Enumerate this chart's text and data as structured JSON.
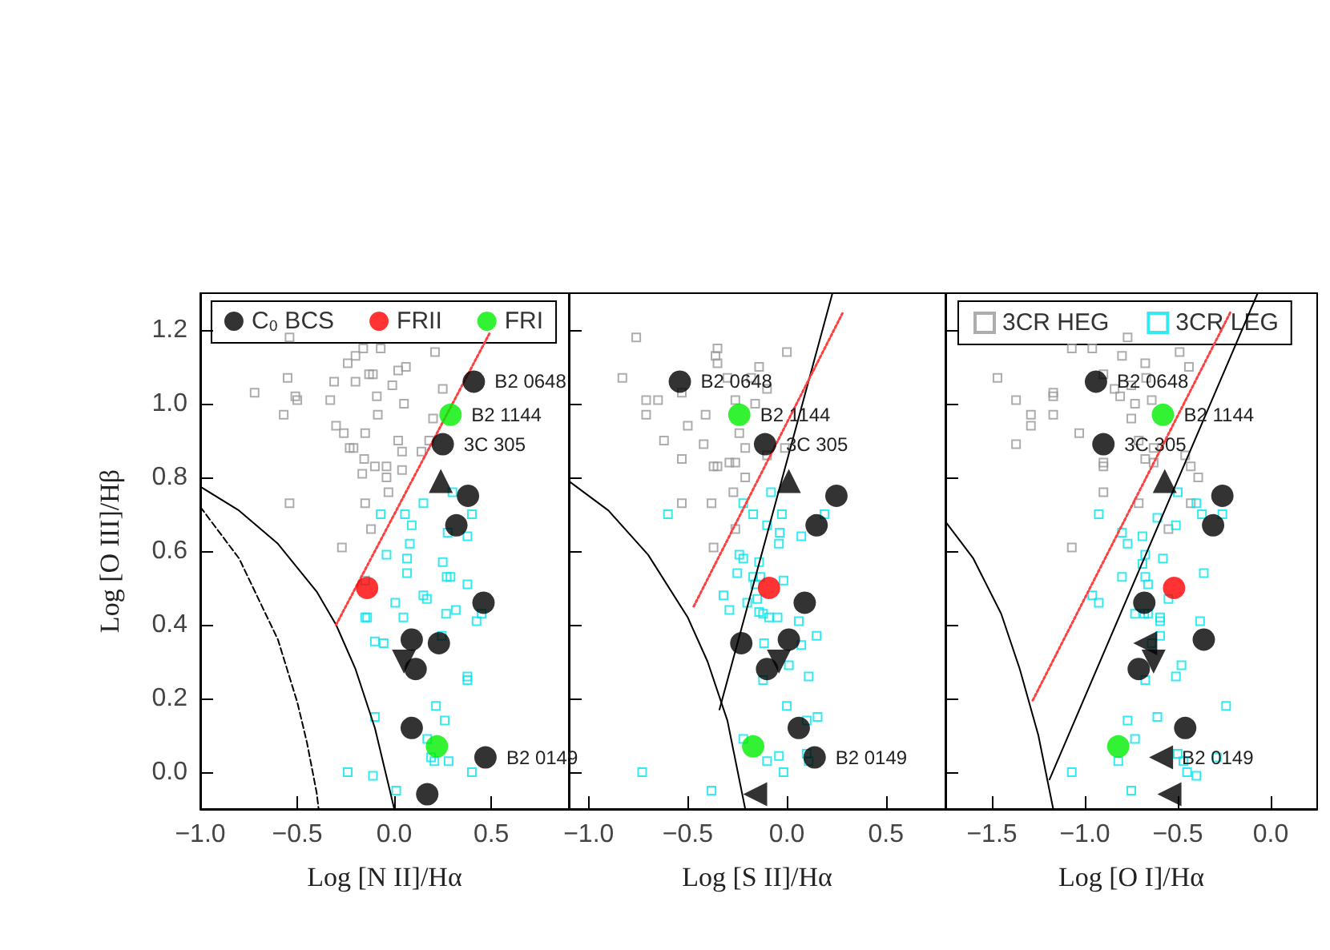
{
  "chart_data": [
    {
      "type": "scatter",
      "xlabel": "Log [N II]/Hα",
      "ylabel": "Log [O III]/Hβ",
      "xlim": [
        -1.0,
        0.9
      ],
      "ylim": [
        -0.1,
        1.3
      ],
      "xticks": [
        {
          "value": -1.0,
          "label": "−1.0"
        },
        {
          "value": -0.5,
          "label": "−0.5"
        },
        {
          "value": 0,
          "label": "0.0"
        },
        {
          "value": 0.5,
          "label": "0.5"
        }
      ],
      "yticks": [
        {
          "value": 0,
          "label": "0.0"
        },
        {
          "value": 0.2,
          "label": "0.2"
        },
        {
          "value": 0.4,
          "label": "0.4"
        },
        {
          "value": 0.6,
          "label": "0.6"
        },
        {
          "value": 0.8,
          "label": "0.8"
        },
        {
          "value": 1.0,
          "label": "1.0"
        },
        {
          "value": 1.2,
          "label": "1.2"
        }
      ],
      "legend": "top",
      "series": [
        {
          "color": "#999999",
          "marker": "square",
          "x": [
            -0.72,
            -0.54,
            -0.55,
            -0.57,
            -0.51,
            -0.5,
            -0.54,
            -0.26,
            -0.31,
            -0.33,
            -0.3,
            -0.24,
            -0.2,
            -0.16,
            -0.07,
            -0.2,
            -0.13,
            -0.11,
            -0.09,
            -0.085,
            -0.23,
            -0.21,
            -0.15,
            -0.155,
            -0.1,
            -0.04,
            -0.04,
            -0.165,
            -0.15,
            -0.03,
            -0.12,
            -0.27,
            -0.01,
            0.02,
            0.06,
            0.05,
            0.02,
            0.04,
            0.04,
            0.14,
            0.18,
            0.2,
            0.21,
            0.25
          ],
          "values": [
            1.03,
            1.18,
            1.07,
            0.97,
            1.02,
            1.01,
            0.73,
            0.92,
            1.06,
            1.01,
            0.94,
            1.11,
            1.13,
            1.15,
            1.15,
            1.06,
            1.08,
            1.08,
            1.02,
            0.97,
            0.88,
            0.88,
            0.92,
            0.85,
            0.83,
            0.83,
            0.8,
            0.81,
            0.73,
            0.76,
            0.66,
            0.61,
            1.05,
            1.09,
            1.1,
            1.0,
            0.9,
            0.87,
            0.82,
            0.87,
            0.9,
            0.96,
            1.14,
            1.04
          ]
        },
        {
          "color": "#00e5ee",
          "marker": "square",
          "x": [
            -0.07,
            0.055,
            0.09,
            0.15,
            0.3,
            0.4,
            0.275,
            0.377,
            -0.04,
            0.066,
            0.08,
            0.066,
            0.25,
            0.27,
            0.29,
            0.377,
            -0.15,
            -0.14,
            -0.15,
            -0.1,
            -0.055,
            0.005,
            0.047,
            0.15,
            0.168,
            0.267,
            0.317,
            0.424,
            0.45,
            0.245,
            0.377,
            0.377,
            0.215,
            0.26,
            -0.1,
            0.17,
            0.19,
            0.207,
            0.28,
            0.4,
            -0.24,
            -0.11,
            0.01
          ],
          "values": [
            0.7,
            0.7,
            0.67,
            0.73,
            0.76,
            0.7,
            0.65,
            0.64,
            0.59,
            0.58,
            0.62,
            0.54,
            0.57,
            0.53,
            0.53,
            0.51,
            0.52,
            0.42,
            0.42,
            0.355,
            0.35,
            0.46,
            0.42,
            0.48,
            0.47,
            0.43,
            0.44,
            0.41,
            0.43,
            0.37,
            0.26,
            0.25,
            0.18,
            0.14,
            0.15,
            0.09,
            0.04,
            0.03,
            0.03,
            0.0,
            0.0,
            -0.01,
            -0.05
          ]
        },
        {
          "type": "line",
          "color": "#000000",
          "marker": "none",
          "line_style": "solid",
          "x": [
            -1.0,
            -0.8,
            -0.6,
            -0.4,
            -0.3,
            -0.2,
            -0.1,
            0.0
          ],
          "values": [
            0.775,
            0.71,
            0.62,
            0.49,
            0.4,
            0.28,
            0.12,
            -0.1
          ]
        },
        {
          "type": "line",
          "color": "#000000",
          "marker": "none",
          "line_style": "dashed",
          "x": [
            -1.0,
            -0.8,
            -0.6,
            -0.5,
            -0.45,
            -0.4,
            -0.39
          ],
          "values": [
            0.72,
            0.58,
            0.36,
            0.19,
            0.08,
            -0.056,
            -0.1
          ]
        },
        {
          "type": "line",
          "color": "#ff4040",
          "marker": "none",
          "line_style": "dotted",
          "x": [
            -0.3,
            0.49
          ],
          "values": [
            0.4,
            1.19
          ]
        },
        {
          "name": "C$_{0}$ BCS",
          "color": "#000000",
          "marker": "circle",
          "x": [
            0.41,
            0.25,
            0.38,
            0.32,
            0.46,
            0.09,
            0.23,
            0.11,
            0.09,
            0.47,
            0.17
          ],
          "values": [
            1.06,
            0.89,
            0.75,
            0.67,
            0.46,
            0.36,
            0.35,
            0.28,
            0.12,
            0.04,
            -0.06
          ]
        },
        {
          "color": "#000000",
          "marker": "triangle",
          "x": [
            0.24
          ],
          "values": [
            0.79
          ]
        },
        {
          "color": "#000000",
          "marker": "triangle-down",
          "x": [
            0.05
          ],
          "values": [
            0.3
          ]
        },
        {
          "name": "FRII",
          "color": "#ff0000",
          "marker": "circle",
          "x": [
            -0.14
          ],
          "values": [
            0.5
          ]
        },
        {
          "name": "FRI",
          "color": "#00ee00",
          "marker": "circle",
          "x": [
            0.29,
            0.22
          ],
          "values": [
            0.97,
            0.07
          ]
        }
      ],
      "annotations": [
        {
          "text": "B2 0648",
          "x": 0.41,
          "y": 1.06
        },
        {
          "text": "B2 1144",
          "x": 0.29,
          "y": 0.97
        },
        {
          "text": "3C 305",
          "x": 0.25,
          "y": 0.89
        },
        {
          "text": "B2 0149",
          "x": 0.47,
          "y": 0.04
        }
      ]
    },
    {
      "type": "scatter",
      "xlabel": "Log [S II]/Hα",
      "xlim": [
        -1.1,
        0.8
      ],
      "ylim": [
        -0.1,
        1.3
      ],
      "tick_labels": "x",
      "xticks": [
        {
          "value": -1.0,
          "label": "−1.0"
        },
        {
          "value": -0.5,
          "label": "−0.5"
        },
        {
          "value": 0,
          "label": "0.0"
        },
        {
          "value": 0.5,
          "label": "0.5"
        }
      ],
      "yticks": [
        {
          "value": 0,
          "label": null
        },
        {
          "value": 0.2,
          "label": null
        },
        {
          "value": 0.4,
          "label": null
        },
        {
          "value": 0.6,
          "label": null
        },
        {
          "value": 0.8,
          "label": null
        },
        {
          "value": 1.0,
          "label": null
        },
        {
          "value": 1.2,
          "label": null
        }
      ],
      "series": [
        {
          "color": "#999999",
          "marker": "square",
          "x": [
            -0.76,
            -0.83,
            -0.71,
            -0.71,
            -0.65,
            -0.62,
            -0.53,
            -0.53,
            -0.53,
            -0.5,
            -0.41,
            -0.42,
            -0.38,
            -0.36,
            -0.35,
            -0.35,
            -0.37,
            -0.35,
            -0.37,
            -0.3,
            -0.29,
            -0.26,
            -0.26,
            -0.24,
            -0.21,
            -0.21,
            -0.27,
            -0.26,
            -0.18,
            -0.16,
            -0.14,
            -0.1,
            -0.1,
            0.0,
            -0.01
          ],
          "values": [
            1.18,
            1.07,
            1.01,
            0.97,
            1.01,
            0.9,
            1.03,
            0.85,
            0.73,
            0.94,
            0.97,
            0.89,
            0.73,
            1.13,
            1.15,
            1.11,
            0.83,
            0.83,
            0.61,
            1.07,
            0.84,
            0.84,
            1.01,
            0.92,
            0.8,
            0.88,
            0.76,
            0.66,
            1.07,
            1.0,
            1.1,
            1.04,
            0.86,
            1.14,
            0.88
          ]
        },
        {
          "color": "#00e5ee",
          "marker": "square",
          "x": [
            -0.6,
            -0.22,
            -0.17,
            -0.08,
            -0.025,
            -0.1,
            -0.036,
            -0.04,
            0.073,
            0.19,
            -0.24,
            -0.22,
            -0.25,
            -0.14,
            -0.17,
            -0.134,
            -0.16,
            -0.017,
            -0.32,
            -0.29,
            -0.2,
            -0.15,
            -0.14,
            -0.12,
            -0.09,
            -0.047,
            0.06,
            0.15,
            -0.115,
            0.073,
            0.01,
            0.11,
            -0.12,
            0.0,
            0.155,
            0.1,
            -0.22,
            -0.04,
            -0.1,
            0.1,
            0.11,
            -0.017,
            -0.73,
            -0.38
          ],
          "values": [
            0.7,
            0.73,
            0.7,
            0.76,
            0.7,
            0.67,
            0.65,
            0.62,
            0.64,
            0.7,
            0.59,
            0.58,
            0.54,
            0.57,
            0.53,
            0.53,
            0.51,
            0.52,
            0.48,
            0.44,
            0.46,
            0.47,
            0.435,
            0.43,
            0.42,
            0.42,
            0.41,
            0.37,
            0.35,
            0.345,
            0.29,
            0.26,
            0.25,
            0.18,
            0.15,
            0.14,
            0.09,
            0.044,
            0.03,
            0.05,
            0.03,
            0.0,
            0.0,
            -0.05
          ]
        },
        {
          "type": "line",
          "color": "#000000",
          "marker": "none",
          "line_style": "solid",
          "x": [
            -1.1,
            -0.9,
            -0.7,
            -0.5,
            -0.4,
            -0.3,
            -0.21
          ],
          "values": [
            0.79,
            0.71,
            0.59,
            0.42,
            0.3,
            0.14,
            -0.1
          ]
        },
        {
          "type": "line",
          "color": "#000000",
          "marker": "none",
          "line_style": "solid",
          "x": [
            -0.34,
            0.23
          ],
          "values": [
            0.17,
            1.3
          ]
        },
        {
          "type": "line",
          "color": "#ff4040",
          "marker": "none",
          "line_style": "dotted",
          "x": [
            -0.47,
            0.28
          ],
          "values": [
            0.45,
            1.245
          ]
        },
        {
          "color": "#000000",
          "marker": "circle",
          "x": [
            -0.54,
            -0.11,
            0.25,
            0.15,
            0.09,
            -0.23,
            0.01,
            -0.1,
            0.06,
            0.14
          ],
          "values": [
            1.06,
            0.89,
            0.75,
            0.67,
            0.46,
            0.35,
            0.36,
            0.28,
            0.12,
            0.04
          ]
        },
        {
          "color": "#000000",
          "marker": "triangle",
          "x": [
            0.01
          ],
          "values": [
            0.79
          ]
        },
        {
          "color": "#000000",
          "marker": "triangle-down",
          "x": [
            -0.04
          ],
          "values": [
            0.3
          ]
        },
        {
          "color": "#000000",
          "marker": "triangle-left",
          "x": [
            -0.16
          ],
          "values": [
            -0.06
          ]
        },
        {
          "color": "#ff0000",
          "marker": "circle",
          "x": [
            -0.09
          ],
          "values": [
            0.5
          ]
        },
        {
          "color": "#00ee00",
          "marker": "circle",
          "x": [
            -0.24,
            -0.17
          ],
          "values": [
            0.97,
            0.07
          ]
        }
      ],
      "annotations": [
        {
          "text": "B2 0648",
          "x": -0.54,
          "y": 1.06
        },
        {
          "text": "B2 1144",
          "x": -0.24,
          "y": 0.97
        },
        {
          "text": "3C 305",
          "x": -0.11,
          "y": 0.89
        },
        {
          "text": "B2 0149",
          "x": 0.14,
          "y": 0.04
        }
      ]
    },
    {
      "type": "scatter",
      "xlabel": "Log [O I]/Hα",
      "xlim": [
        -1.75,
        0.25
      ],
      "ylim": [
        -0.1,
        1.3
      ],
      "tick_labels": "x",
      "xticks": [
        {
          "value": -1.5,
          "label": "−1.5"
        },
        {
          "value": -1.0,
          "label": "−1.0"
        },
        {
          "value": -0.5,
          "label": "−0.5"
        },
        {
          "value": 0,
          "label": "0.0"
        }
      ],
      "yticks": [
        {
          "value": 0,
          "label": null
        },
        {
          "value": 0.2,
          "label": null
        },
        {
          "value": 0.4,
          "label": null
        },
        {
          "value": 0.6,
          "label": null
        },
        {
          "value": 0.8,
          "label": null
        },
        {
          "value": 1.0,
          "label": null
        },
        {
          "value": 1.2,
          "label": null
        }
      ],
      "legend": "top left",
      "series": [
        {
          "name": "3CR HEG",
          "color": "#999999",
          "marker": "square",
          "x": [
            -1.47,
            -1.37,
            -1.29,
            -1.29,
            -1.37,
            -1.17,
            -1.17,
            -1.17,
            -1.07,
            -0.96,
            -1.03,
            -1.07,
            -0.9,
            -0.9,
            -0.9,
            -0.9,
            -0.84,
            -0.81,
            -0.8,
            -0.77,
            -0.75,
            -0.73,
            -0.75,
            -0.71,
            -0.71,
            -0.675,
            -0.67,
            -0.64,
            -0.675,
            -0.63,
            -0.63,
            -0.55,
            -0.49,
            -0.44,
            -0.46,
            -0.43,
            -0.39,
            -0.43
          ],
          "values": [
            1.07,
            1.01,
            0.97,
            0.94,
            0.89,
            1.03,
            1.02,
            0.97,
            1.15,
            1.15,
            0.92,
            0.61,
            1.08,
            0.84,
            0.83,
            0.76,
            1.04,
            1.02,
            1.13,
            1.18,
            1.05,
            1.0,
            0.96,
            0.9,
            0.73,
            1.11,
            1.07,
            1.01,
            0.85,
            0.88,
            0.84,
            0.66,
            1.14,
            1.1,
            0.86,
            0.83,
            0.8,
            0.73
          ]
        },
        {
          "name": "3CR LEG",
          "color": "#00e5ee",
          "marker": "square",
          "x": [
            -0.925,
            -0.5,
            -0.4,
            -0.61,
            -0.51,
            -0.37,
            -0.26,
            -0.8,
            -0.77,
            -0.69,
            -0.675,
            -0.69,
            -0.58,
            -0.36,
            -0.8,
            -0.675,
            -0.66,
            -0.55,
            -0.96,
            -0.925,
            -0.73,
            -0.68,
            -0.66,
            -0.595,
            -0.595,
            -0.38,
            -0.595,
            -0.64,
            -0.48,
            -0.51,
            -0.675,
            -0.24,
            -0.77,
            -0.61,
            -0.73,
            -0.82,
            -0.5,
            -0.47,
            -0.29,
            -0.45,
            -0.4,
            -1.07,
            -0.75
          ],
          "values": [
            0.7,
            0.76,
            0.73,
            0.69,
            0.67,
            0.7,
            0.7,
            0.65,
            0.62,
            0.64,
            0.59,
            0.565,
            0.58,
            0.54,
            0.53,
            0.53,
            0.51,
            0.47,
            0.48,
            0.46,
            0.43,
            0.43,
            0.43,
            0.42,
            0.41,
            0.41,
            0.37,
            0.35,
            0.29,
            0.26,
            0.25,
            0.18,
            0.14,
            0.15,
            0.09,
            0.03,
            0.05,
            0.03,
            0.04,
            0.0,
            -0.01,
            0.0,
            -0.05
          ]
        },
        {
          "type": "line",
          "color": "#000000",
          "marker": "none",
          "line_style": "solid",
          "x": [
            -1.75,
            -1.6,
            -1.45,
            -1.35,
            -1.25,
            -1.17
          ],
          "values": [
            0.68,
            0.58,
            0.43,
            0.28,
            0.1,
            -0.1
          ]
        },
        {
          "type": "line",
          "color": "#000000",
          "marker": "none",
          "line_style": "solid",
          "x": [
            -1.19,
            -0.07
          ],
          "values": [
            -0.02,
            1.3
          ]
        },
        {
          "type": "line",
          "color": "#ff4040",
          "marker": "none",
          "line_style": "dotted",
          "x": [
            -1.28,
            -0.215
          ],
          "values": [
            0.195,
            1.25
          ]
        },
        {
          "color": "#000000",
          "marker": "circle",
          "x": [
            -0.94,
            -0.9,
            -0.26,
            -0.31,
            -0.68,
            -0.36,
            -0.71,
            -0.46
          ],
          "values": [
            1.06,
            0.89,
            0.75,
            0.67,
            0.46,
            0.36,
            0.28,
            0.12
          ]
        },
        {
          "color": "#000000",
          "marker": "triangle",
          "x": [
            -0.57
          ],
          "values": [
            0.79
          ]
        },
        {
          "color": "#000000",
          "marker": "triangle-down",
          "x": [
            -0.63
          ],
          "values": [
            0.3
          ]
        },
        {
          "color": "#000000",
          "marker": "triangle-left",
          "x": [
            -0.675,
            -0.59,
            -0.545
          ],
          "values": [
            0.35,
            0.04,
            -0.06
          ]
        },
        {
          "color": "#ff0000",
          "marker": "circle",
          "x": [
            -0.52
          ],
          "values": [
            0.5
          ]
        },
        {
          "color": "#00ee00",
          "marker": "circle",
          "x": [
            -0.58,
            -0.82
          ],
          "values": [
            0.97,
            0.07
          ]
        }
      ],
      "annotations": [
        {
          "text": "B2 0648",
          "x": -0.94,
          "y": 1.06
        },
        {
          "text": "B2 1144",
          "x": -0.58,
          "y": 0.97
        },
        {
          "text": "3C 305",
          "x": -0.9,
          "y": 0.89
        },
        {
          "text": "B2 0149",
          "x": -0.59,
          "y": 0.04
        }
      ]
    }
  ]
}
